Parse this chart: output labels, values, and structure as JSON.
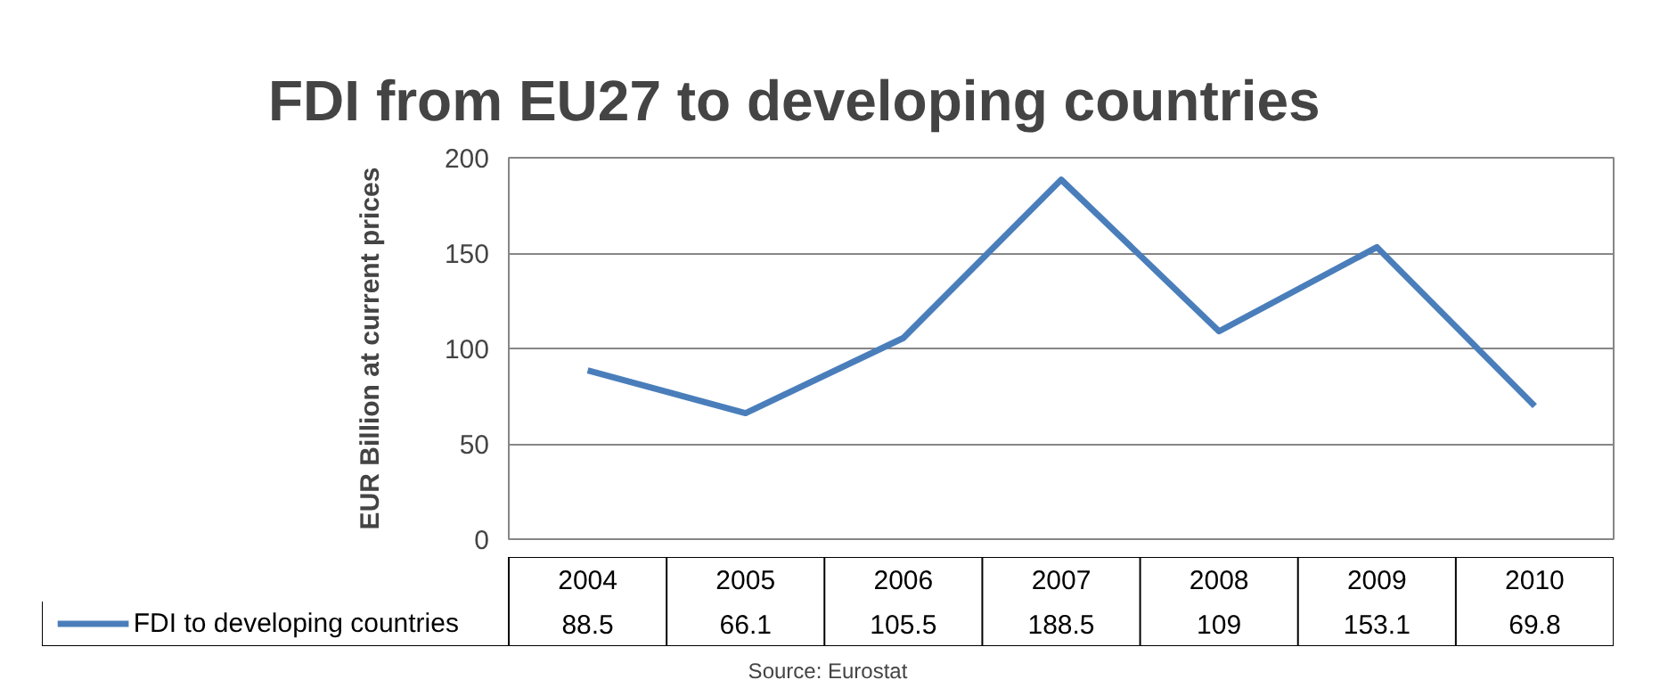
{
  "chart_data": {
    "type": "line",
    "title": "FDI from EU27 to developing countries",
    "ylabel": "EUR Billion at current prices",
    "categories": [
      "2004",
      "2005",
      "2006",
      "2007",
      "2008",
      "2009",
      "2010"
    ],
    "series": [
      {
        "name": "FDI to developing countries",
        "color": "#4a7ebb",
        "values": [
          88.5,
          66.1,
          105.5,
          188.5,
          109,
          153.1,
          69.8
        ]
      }
    ],
    "ylim": [
      0,
      200
    ],
    "yticks": [
      0,
      50,
      100,
      150,
      200
    ],
    "grid": "y",
    "legend": "bottom",
    "data_labels": true,
    "marker": "none",
    "line_style": "solid",
    "annotations": [
      "Source: Eurostat"
    ]
  }
}
